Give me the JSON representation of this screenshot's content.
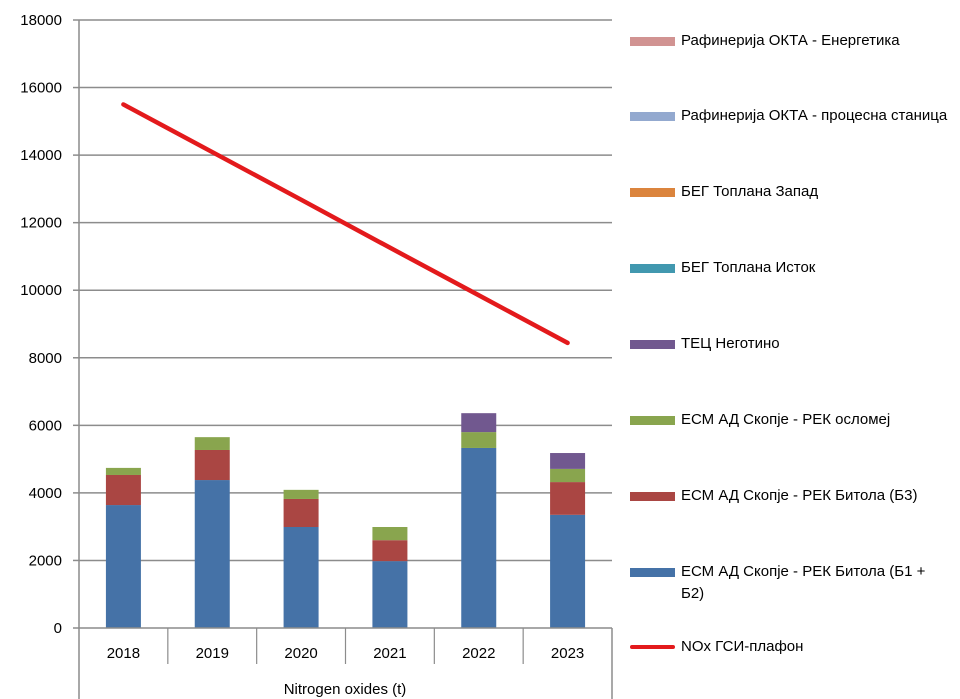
{
  "chart_data": {
    "type": "bar",
    "stacked": true,
    "title": "",
    "xlabel": "Nitrogen oxides (t)",
    "ylabel": "",
    "ylim": [
      0,
      18000
    ],
    "yticks": [
      "0",
      "2000",
      "4000",
      "6000",
      "8000",
      "10000",
      "12000",
      "14000",
      "16000",
      "18000"
    ],
    "grid": true,
    "legend_position": "right",
    "categories": [
      "2018",
      "2019",
      "2020",
      "2021",
      "2022",
      "2023"
    ],
    "series": [
      {
        "name": "ЕСМ АД Скопје - РЕК Битола (Б1 + Б2)",
        "color": "#4572A7",
        "values": [
          3640,
          4380,
          2990,
          1980,
          5330,
          3350
        ]
      },
      {
        "name": "ЕСМ АД Скопје - РЕК Битола (Б3)",
        "color": "#AA4643",
        "values": [
          890,
          890,
          830,
          620,
          0,
          970
        ]
      },
      {
        "name": "ЕСМ АД Скопје - РЕК осломеј",
        "color": "#89A54E",
        "values": [
          210,
          380,
          270,
          390,
          470,
          390
        ]
      },
      {
        "name": "ТЕЦ Неготино",
        "color": "#71588F",
        "values": [
          0,
          0,
          0,
          0,
          560,
          470
        ]
      },
      {
        "name": "БЕГ Топлана Исток",
        "color": "#4198AF",
        "values": [
          0,
          0,
          0,
          0,
          0,
          0
        ]
      },
      {
        "name": "БЕГ Топлана Запад",
        "color": "#DB843D",
        "values": [
          0,
          0,
          0,
          0,
          0,
          0
        ]
      },
      {
        "name": "Рафинерија ОКТА - процесна станица",
        "color": "#93A9CF",
        "values": [
          0,
          0,
          0,
          0,
          0,
          0
        ]
      },
      {
        "name": "Рафинерија ОКТА - Енергетика",
        "color": "#D19392",
        "values": [
          0,
          0,
          0,
          0,
          0,
          0
        ]
      }
    ],
    "line_series": {
      "name": "NOx ГСИ-плафон",
      "color": "#E31A1C",
      "type": "line",
      "values": [
        15500,
        14090,
        12680,
        11260,
        9850,
        8440
      ]
    },
    "legend_order": [
      "Рафинерија ОКТА - Енергетика",
      "Рафинерија ОКТА - процесна станица",
      "БЕГ Топлана Запад",
      "БЕГ Топлана Исток",
      "ТЕЦ Неготино",
      "ЕСМ АД Скопје - РЕК осломеј",
      "ЕСМ АД Скопје - РЕК Битола (Б3)",
      "ЕСМ АД Скопје - РЕК Битола (Б1 + Б2)",
      "NOx ГСИ-плафон"
    ]
  },
  "legend": {
    "items": [
      {
        "label": "Рафинерија ОКТА - Енергетика",
        "color": "#D19392",
        "kind": "swatch"
      },
      {
        "label": "Рафинерија ОКТА - процесна станица",
        "color": "#93A9CF",
        "kind": "swatch"
      },
      {
        "label": "БЕГ Топлана Запад",
        "color": "#DB843D",
        "kind": "swatch"
      },
      {
        "label": "БЕГ Топлана Исток",
        "color": "#4198AF",
        "kind": "swatch"
      },
      {
        "label": "ТЕЦ Неготино",
        "color": "#71588F",
        "kind": "swatch"
      },
      {
        "label": "ЕСМ АД Скопје - РЕК осломеј",
        "color": "#89A54E",
        "kind": "swatch"
      },
      {
        "label": "ЕСМ АД Скопје - РЕК Битола (Б3)",
        "color": "#AA4643",
        "kind": "swatch"
      },
      {
        "label": "ЕСМ АД Скопје - РЕК Битола (Б1 + Б2)",
        "color": "#4572A7",
        "kind": "swatch"
      },
      {
        "label": "NOx ГСИ-плафон",
        "color": "#E31A1C",
        "kind": "line"
      }
    ]
  }
}
